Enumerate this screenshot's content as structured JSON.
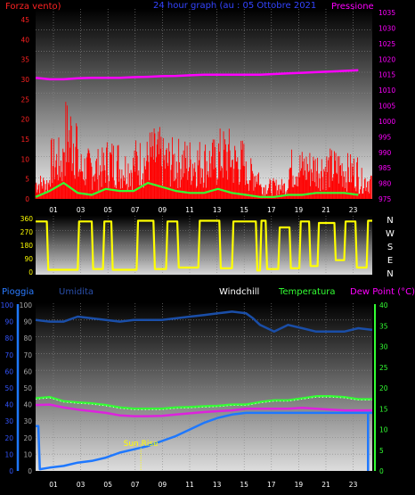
{
  "colors": {
    "wind": "#ff0000",
    "gust": "#ff0000",
    "wind_avg": "#33ff33",
    "pressure": "#ff00ff",
    "direction": "#ffff00",
    "rain": "#1e78ff",
    "humidity": "#1a4ea8",
    "temperature": "#33ff33",
    "dewpoint": "#dd22dd",
    "windchill": "#ffffff",
    "sunrise": "#ffff00",
    "axis_red": "#ff2222",
    "axis_green": "#33ff33",
    "axis_magenta": "#ff00ff",
    "axis_blue": "#3355ff",
    "axis_yellow": "#ffff00",
    "axis_grey": "#aaaaaa",
    "text_white": "#ffffff"
  },
  "top": {
    "title": "24 hour graph (au : 05 Ottobre 2021",
    "left_label": "Forza vento)",
    "right_label": "Pressione"
  },
  "bottom": {
    "label_rain": "Pioggia",
    "label_humidity": "Umidita",
    "label_windchill": "Windchill",
    "label_temperature": "Temperatura",
    "label_dewpoint": "Dew Point (°C)",
    "sunrise_label": "Sun Rise"
  },
  "chart_data": [
    {
      "type": "line",
      "panel": "wind_pressure",
      "x_tick_labels": [
        "01",
        "03",
        "05",
        "07",
        "09",
        "11",
        "13",
        "15",
        "17",
        "19",
        "21",
        "23"
      ],
      "left_axis": {
        "ticks": [
          "0",
          "5",
          "10",
          "15",
          "20",
          "25",
          "30",
          "35",
          "40",
          "45"
        ],
        "ylim": [
          0,
          45
        ]
      },
      "right_axis": {
        "ticks": [
          "975",
          "980",
          "985",
          "990",
          "995",
          "1000",
          "1005",
          "1010",
          "1015",
          "1020",
          "1025",
          "1030",
          "1035"
        ],
        "ylim": [
          975,
          1035
        ]
      },
      "series": [
        {
          "axis": "left",
          "x": [
            0,
            1,
            2,
            3,
            4,
            5,
            6,
            7,
            8,
            9,
            10,
            11,
            12,
            13,
            14,
            15,
            16,
            17,
            18,
            19,
            20,
            21,
            22,
            23
          ],
          "values": [
            5,
            12,
            20,
            10,
            10,
            12,
            10,
            12,
            14,
            12,
            12,
            12,
            12,
            14,
            12,
            8,
            4,
            4,
            10,
            10,
            10,
            10,
            9,
            6
          ]
        },
        {
          "axis": "left",
          "x": [
            0,
            1,
            2,
            3,
            4,
            5,
            6,
            7,
            8,
            9,
            10,
            11,
            12,
            13,
            14,
            15,
            16,
            17,
            18,
            19,
            20,
            21,
            22,
            23
          ],
          "values": [
            0.5,
            2,
            4,
            1.5,
            1,
            2.5,
            2,
            2,
            4,
            3,
            2,
            1.5,
            1.5,
            2.5,
            1.5,
            1,
            0.5,
            0.5,
            1,
            1,
            1.5,
            1.5,
            1.5,
            1
          ]
        },
        {
          "axis": "right",
          "x": [
            0,
            1,
            2,
            3,
            4,
            5,
            6,
            7,
            8,
            9,
            10,
            11,
            12,
            13,
            14,
            15,
            16,
            17,
            18,
            19,
            20,
            21,
            22,
            23
          ],
          "values": [
            1014,
            1013.5,
            1013.5,
            1013.8,
            1014,
            1014,
            1014,
            1014.2,
            1014.3,
            1014.5,
            1014.6,
            1014.8,
            1015,
            1015,
            1015,
            1015,
            1015,
            1015.2,
            1015.4,
            1015.6,
            1015.8,
            1016,
            1016.2,
            1016.4
          ]
        }
      ]
    },
    {
      "type": "line",
      "panel": "wind_direction",
      "left_axis": {
        "ticks": [
          "0",
          "90",
          "180",
          "270",
          "360"
        ],
        "ylim": [
          0,
          360
        ]
      },
      "right_labels": [
        "N",
        "W",
        "S",
        "E",
        "N"
      ],
      "series": [
        {
          "x": [
            0,
            0.8,
            0.9,
            3.0,
            3.1,
            4.0,
            4.1,
            4.8,
            4.9,
            5.4,
            5.5,
            7.2,
            7.3,
            8.4,
            8.5,
            9.3,
            9.4,
            10.1,
            10.2,
            11.6,
            11.7,
            13.1,
            13.2,
            14.0,
            14.1,
            15.7,
            15.8,
            16.0,
            16.1,
            16.4,
            16.5,
            17.3,
            17.4,
            18.1,
            18.2,
            18.8,
            18.9,
            19.5,
            19.6,
            20.1,
            20.2,
            21.3,
            21.4,
            22.0,
            22.1,
            22.8,
            22.9,
            23.6,
            23.7,
            24
          ],
          "values": [
            340,
            340,
            15,
            15,
            340,
            340,
            20,
            20,
            340,
            340,
            15,
            15,
            345,
            345,
            20,
            20,
            340,
            340,
            30,
            30,
            345,
            345,
            25,
            25,
            340,
            340,
            10,
            10,
            345,
            345,
            20,
            20,
            300,
            300,
            25,
            25,
            340,
            340,
            40,
            40,
            330,
            330,
            80,
            80,
            340,
            340,
            30,
            30,
            345,
            345
          ]
        }
      ]
    },
    {
      "type": "line",
      "panel": "rain_humidity_temperature",
      "left_axis": {
        "ticks": [
          "0",
          "10",
          "20",
          "30",
          "40",
          "50",
          "60",
          "70",
          "80",
          "90",
          "100"
        ],
        "ylim": [
          0,
          100
        ]
      },
      "right_axis": {
        "ticks": [
          "0",
          "5",
          "10",
          "15",
          "20",
          "25",
          "30",
          "35",
          "40"
        ],
        "ylim": [
          0,
          40
        ]
      },
      "x_tick_labels": [
        "01",
        "03",
        "05",
        "07",
        "09",
        "11",
        "13",
        "15",
        "17",
        "19",
        "21",
        "23"
      ],
      "series": [
        {
          "axis": "left",
          "x": [
            0,
            1,
            2,
            3,
            4,
            5,
            6,
            7,
            8,
            9,
            10,
            11,
            12,
            13,
            14,
            15,
            15.5,
            16,
            17,
            18,
            19,
            20,
            21,
            22,
            23,
            24
          ],
          "values": [
            91,
            90,
            90,
            93,
            92,
            91,
            90,
            91,
            91,
            91,
            92,
            93,
            94,
            95,
            96,
            95,
            92,
            88,
            84,
            88,
            86,
            84,
            84,
            84,
            86,
            85
          ]
        },
        {
          "axis": "right",
          "x": [
            0,
            1,
            2,
            3,
            4,
            5,
            6,
            7,
            8,
            9,
            10,
            11,
            12,
            13,
            14,
            15,
            16,
            17,
            18,
            19,
            20,
            21,
            22,
            23,
            24
          ],
          "values": [
            17.5,
            17.8,
            16.8,
            16.5,
            16.3,
            15.9,
            15.3,
            15,
            15,
            15,
            15.3,
            15.4,
            15.6,
            15.7,
            16,
            16,
            16.6,
            17,
            17,
            17.5,
            18,
            18,
            17.8,
            17.3,
            17.3
          ]
        },
        {
          "axis": "right",
          "x": [
            0,
            1,
            2,
            3,
            4,
            5,
            6,
            7,
            8,
            9,
            10,
            11,
            12,
            13,
            14,
            15,
            16,
            17,
            18,
            19,
            20,
            21,
            22,
            23,
            24
          ],
          "values": [
            15.9,
            16,
            15.3,
            14.8,
            14.4,
            14,
            13.4,
            13.2,
            13.2,
            13.3,
            13.6,
            13.9,
            14.2,
            14.4,
            14.6,
            15,
            15,
            15,
            15,
            15.2,
            15,
            14.8,
            14.6,
            14.6,
            14.6
          ]
        },
        {
          "axis": "left",
          "x": [
            0,
            0.2,
            0.3,
            1,
            2,
            3,
            4,
            5,
            6,
            7,
            8,
            9,
            10,
            11,
            12,
            13,
            14,
            15,
            23.6,
            23.7,
            24
          ],
          "values": [
            27,
            27,
            1,
            2,
            3,
            5,
            6,
            8,
            11,
            13,
            15,
            18,
            21,
            25,
            29,
            32,
            34,
            35,
            35,
            35,
            35
          ]
        }
      ],
      "sunrise_x": 7.5
    }
  ]
}
